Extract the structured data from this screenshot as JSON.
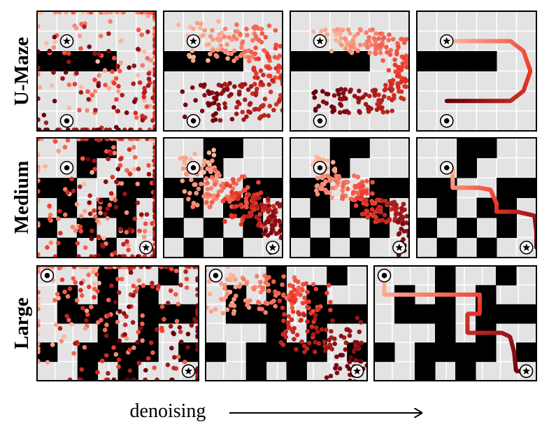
{
  "row_labels": [
    "U-Maze",
    "Medium",
    "Large"
  ],
  "x_label": "denoising",
  "marker_icons": [
    "start-circle-icon",
    "goal-star-icon"
  ],
  "colors": {
    "floor": "#e3e3e3",
    "wall": "#000000",
    "grid_line": "#ffffff",
    "early_point": "#fcbba1",
    "mid_point": "#ef3b2c",
    "late_point": "#67000d"
  },
  "panels_per_row": [
    4,
    4,
    3
  ]
}
